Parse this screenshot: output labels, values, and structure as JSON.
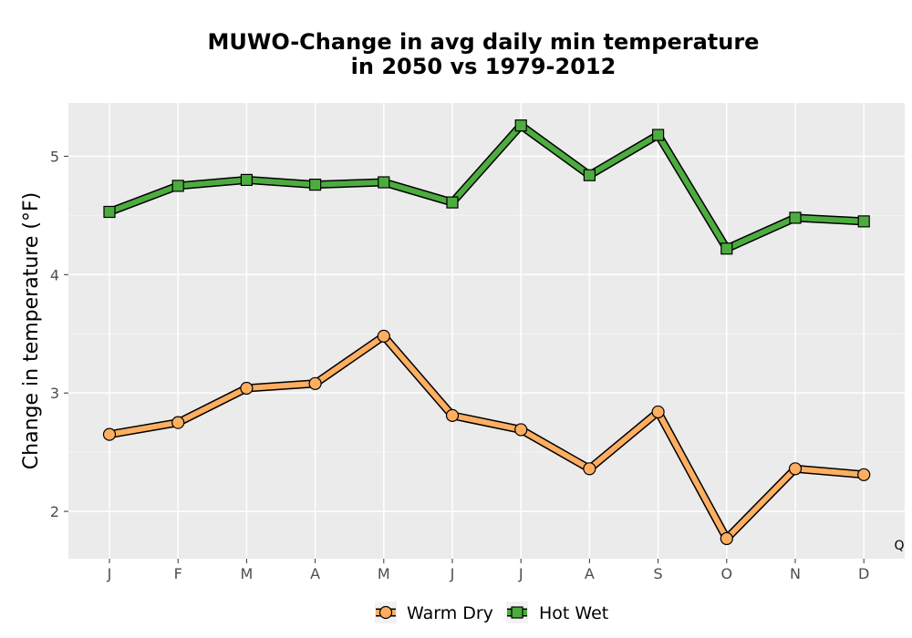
{
  "chart_data": {
    "type": "line",
    "title_lines": [
      "MUWO-Change in avg daily min temperature",
      "in 2050 vs 1979-2012"
    ],
    "xlabel": "",
    "ylabel": "Change in temperature (°F)",
    "categories": [
      "J",
      "F",
      "M",
      "A",
      "M",
      "J",
      "J",
      "A",
      "S",
      "O",
      "N",
      "D"
    ],
    "ylim": [
      1.6,
      5.45
    ],
    "yticks": [
      2,
      3,
      4,
      5
    ],
    "grid": true,
    "legend_position": "bottom",
    "corner_label": "Q",
    "colors": {
      "panel_background": "#ebebeb",
      "grid_major": "#ffffff",
      "grid_minor": "#f4f4f4",
      "outline": "#000000"
    },
    "series": [
      {
        "name": "Warm Dry",
        "marker": "circle",
        "color": "#fdae61",
        "values": [
          2.65,
          2.75,
          3.04,
          3.08,
          3.48,
          2.81,
          2.69,
          2.36,
          2.84,
          1.77,
          2.36,
          2.31
        ]
      },
      {
        "name": "Hot Wet",
        "marker": "square",
        "color": "#4dac3f",
        "values": [
          4.53,
          4.75,
          4.8,
          4.76,
          4.78,
          4.61,
          5.26,
          4.84,
          5.18,
          4.22,
          4.48,
          4.45
        ]
      }
    ]
  }
}
